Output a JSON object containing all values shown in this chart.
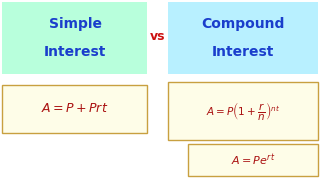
{
  "bg_color": "#ffffff",
  "left_header_bg": "#b8ffdc",
  "right_header_bg": "#b8f0ff",
  "formula_bg": "#fefde8",
  "formula_edge": "#c8a040",
  "header_text_color": "#1a3ecc",
  "vs_color": "#cc1111",
  "formula_color": "#aa1111",
  "left_header_line1": "Simple",
  "left_header_line2": "Interest",
  "right_header_line1": "Compound",
  "right_header_line2": "Interest",
  "vs_text": "vs",
  "formula_simple": "$A = P + Prt$",
  "formula_compound": "$A = P\\left(1+\\dfrac{r}{n}\\right)^{nt}$",
  "formula_continuous": "$A = Pe^{rt}$",
  "header_fontsize": 10,
  "formula_fontsize_simple": 9,
  "formula_fontsize_compound": 7.5,
  "formula_fontsize_continuous": 8,
  "vs_fontsize": 9
}
